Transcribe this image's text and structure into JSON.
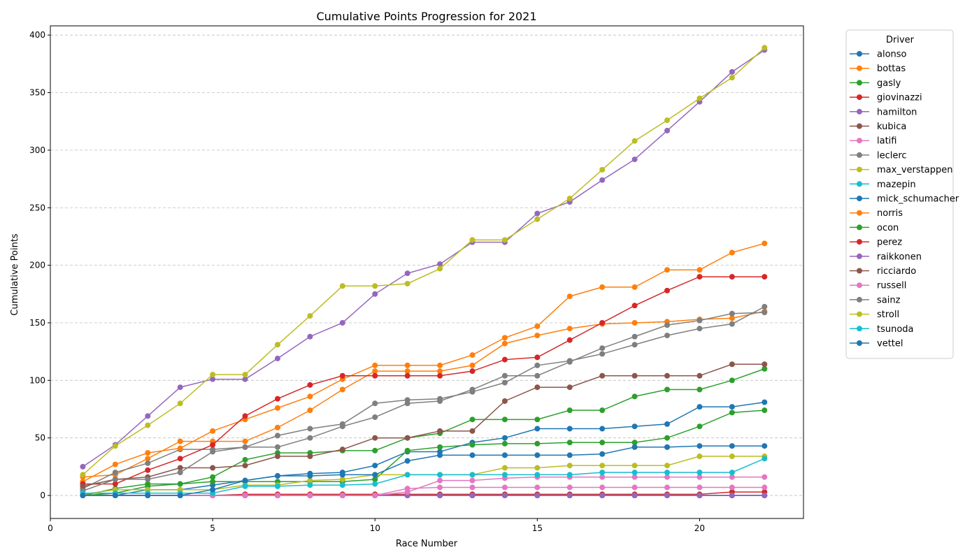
{
  "chart_data": {
    "type": "line",
    "title": "Cumulative Points Progression for 2021",
    "xlabel": "Race Number",
    "ylabel": "Cumulative Points",
    "xlim": [
      0,
      23.2
    ],
    "ylim": [
      -20,
      408
    ],
    "xticks": [
      0,
      5,
      10,
      15,
      20
    ],
    "yticks": [
      0,
      50,
      100,
      150,
      200,
      250,
      300,
      350,
      400
    ],
    "grid": "y-dashed",
    "legend": {
      "title": "Driver",
      "placement": "outside-right"
    },
    "x": [
      1,
      2,
      3,
      4,
      5,
      6,
      7,
      8,
      9,
      10,
      11,
      12,
      13,
      14,
      15,
      16,
      17,
      18,
      19,
      20,
      21,
      22
    ],
    "series": [
      {
        "name": "alonso",
        "color": "#1f77b4",
        "values": [
          0,
          0,
          5,
          5,
          9,
          13,
          17,
          19,
          20,
          26,
          38,
          38,
          46,
          50,
          58,
          58,
          58,
          60,
          62,
          77,
          77,
          81
        ]
      },
      {
        "name": "bottas",
        "color": "#ff7f0e",
        "values": [
          16,
          18,
          32,
          47,
          47,
          47,
          59,
          74,
          92,
          108,
          108,
          108,
          113,
          132,
          139,
          145,
          149,
          150,
          151,
          153,
          154,
          160
        ]
      },
      {
        "name": "gasly",
        "color": "#2ca02c",
        "values": [
          0,
          6,
          10,
          10,
          16,
          31,
          37,
          37,
          39,
          39,
          50,
          54,
          66,
          66,
          66,
          74,
          74,
          86,
          92,
          92,
          100,
          110
        ]
      },
      {
        "name": "giovinazzi",
        "color": "#d62728",
        "values": [
          0,
          0,
          0,
          0,
          0,
          1,
          1,
          1,
          1,
          1,
          1,
          1,
          1,
          1,
          1,
          1,
          1,
          1,
          1,
          1,
          3,
          3
        ]
      },
      {
        "name": "hamilton",
        "color": "#9467bd",
        "values": [
          25,
          44,
          69,
          94,
          101,
          101,
          119,
          138,
          150,
          175,
          193,
          201,
          220,
          220,
          245,
          255,
          274,
          292,
          317,
          342,
          368,
          387
        ]
      },
      {
        "name": "kubica",
        "color": "#8c564b",
        "values": [
          0,
          0,
          0,
          0,
          0,
          0,
          0,
          0,
          0,
          0,
          0,
          0,
          0,
          0,
          0,
          0,
          0,
          0,
          0,
          0,
          0,
          0
        ]
      },
      {
        "name": "latifi",
        "color": "#e377c2",
        "values": [
          0,
          0,
          0,
          0,
          0,
          0,
          0,
          0,
          0,
          0,
          6,
          7,
          7,
          7,
          7,
          7,
          7,
          7,
          7,
          7,
          7,
          7
        ]
      },
      {
        "name": "leclerc",
        "color": "#7f7f7f",
        "values": [
          6,
          20,
          28,
          40,
          40,
          42,
          42,
          50,
          60,
          68,
          80,
          82,
          92,
          104,
          104,
          116,
          128,
          138,
          148,
          152,
          158,
          159
        ]
      },
      {
        "name": "max_verstappen",
        "color": "#bcbd22",
        "values": [
          18,
          43,
          61,
          80,
          105,
          105,
          131,
          156,
          182,
          182,
          184,
          197,
          222,
          222,
          240,
          258,
          283,
          308,
          326,
          345,
          363,
          389
        ]
      },
      {
        "name": "mazepin",
        "color": "#17becf",
        "values": [
          0,
          0,
          0,
          0,
          0,
          0,
          0,
          0,
          0,
          0,
          0,
          0,
          0,
          0,
          0,
          0,
          0,
          0,
          0,
          0,
          0,
          0
        ]
      },
      {
        "name": "mick_schumacher",
        "color": "#1f77b4",
        "values": [
          0,
          0,
          0,
          0,
          0,
          0,
          0,
          0,
          0,
          0,
          0,
          0,
          0,
          0,
          0,
          0,
          0,
          0,
          0,
          0,
          0,
          0
        ]
      },
      {
        "name": "norris",
        "color": "#ff7f0e",
        "values": [
          12,
          27,
          37,
          41,
          56,
          66,
          76,
          86,
          101,
          113,
          113,
          113,
          122,
          137,
          147,
          173,
          181,
          181,
          196,
          196,
          211,
          219
        ]
      },
      {
        "name": "ocon",
        "color": "#2ca02c",
        "values": [
          0,
          2,
          8,
          10,
          12,
          12,
          12,
          12,
          12,
          14,
          39,
          42,
          44,
          45,
          45,
          46,
          46,
          46,
          50,
          60,
          72,
          74
        ]
      },
      {
        "name": "perez",
        "color": "#d62728",
        "values": [
          10,
          10,
          22,
          32,
          44,
          69,
          84,
          96,
          104,
          104,
          104,
          104,
          108,
          118,
          120,
          135,
          150,
          165,
          178,
          190,
          190,
          190
        ]
      },
      {
        "name": "raikkonen",
        "color": "#9467bd",
        "values": [
          0,
          0,
          0,
          0,
          0,
          0,
          0,
          0,
          0,
          0,
          0,
          0,
          0,
          0,
          0,
          0,
          0,
          0,
          0,
          0,
          0,
          0
        ]
      },
      {
        "name": "ricciardo",
        "color": "#8c564b",
        "values": [
          8,
          14,
          16,
          24,
          24,
          26,
          34,
          34,
          40,
          50,
          50,
          56,
          56,
          82,
          94,
          94,
          104,
          104,
          104,
          104,
          114,
          114
        ]
      },
      {
        "name": "russell",
        "color": "#e377c2",
        "values": [
          0,
          0,
          0,
          0,
          0,
          0,
          0,
          0,
          0,
          0,
          3,
          13,
          13,
          15,
          16,
          16,
          16,
          16,
          16,
          16,
          16,
          16
        ]
      },
      {
        "name": "sainz",
        "color": "#7f7f7f",
        "values": [
          4,
          14,
          14,
          20,
          38,
          42,
          52,
          58,
          62,
          80,
          83,
          84,
          90,
          98,
          113,
          117,
          123,
          131,
          139,
          145,
          149,
          164
        ]
      },
      {
        "name": "stroll",
        "color": "#bcbd22",
        "values": [
          1,
          5,
          5,
          5,
          5,
          9,
          9,
          13,
          14,
          18,
          18,
          18,
          18,
          24,
          24,
          26,
          26,
          26,
          26,
          34,
          34,
          34
        ]
      },
      {
        "name": "tsunoda",
        "color": "#17becf",
        "values": [
          2,
          2,
          2,
          2,
          2,
          8,
          8,
          9,
          9,
          10,
          18,
          18,
          18,
          18,
          18,
          18,
          20,
          20,
          20,
          20,
          20,
          32
        ]
      },
      {
        "name": "vettel",
        "color": "#1f77b4",
        "values": [
          0,
          0,
          0,
          0,
          5,
          13,
          17,
          17,
          18,
          18,
          30,
          35,
          35,
          35,
          35,
          35,
          36,
          42,
          42,
          43,
          43,
          43
        ]
      }
    ]
  }
}
